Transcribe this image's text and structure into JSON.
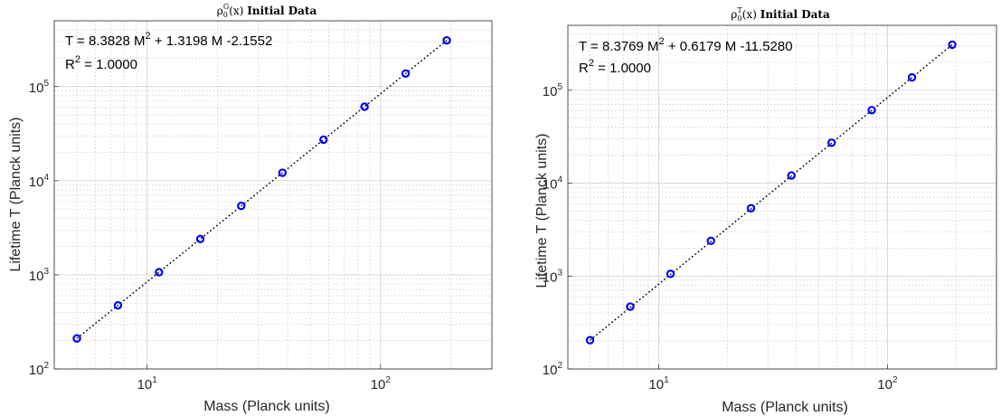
{
  "chart_data": [
    {
      "type": "scatter",
      "title_prefix": "ρ",
      "title_sub": "0",
      "title_sup": "G",
      "title_suffix": "(x)",
      "title_bold": "Initial Data",
      "xlabel": "Mass (Planck units)",
      "ylabel": "Lifetime T (Planck units)",
      "xscale": "log",
      "yscale": "log",
      "xlim": [
        4,
        300
      ],
      "ylim": [
        100,
        500000
      ],
      "xticks": [
        10,
        100
      ],
      "yticks": [
        100,
        1000,
        10000,
        100000
      ],
      "grid": true,
      "marker_color": "#0000ff",
      "fit_line_color": "#000000",
      "series": [
        {
          "type": "scatter",
          "x": [
            5,
            7.5,
            11.25,
            16.9,
            25.3,
            38.0,
            57.0,
            85.4,
            128.1,
            192.2
          ],
          "y": [
            211,
            474,
            1068,
            2403,
            5400,
            12150,
            27300,
            61200,
            137700,
            309700
          ]
        },
        {
          "type": "line",
          "style": "dotted",
          "x": [
            5,
            192.2
          ],
          "y": [
            211,
            309700
          ]
        }
      ],
      "annotations": {
        "eq_prefix": "T = 8.3828 M",
        "eq_sup": "2",
        "eq_suffix": " + 1.3198 M -2.1552",
        "r2_prefix": "R",
        "r2_sup": "2",
        "r2_suffix": " = 1.0000"
      }
    },
    {
      "type": "scatter",
      "title_prefix": "ρ",
      "title_sub": "0",
      "title_sup": "T",
      "title_suffix": "(x)",
      "title_bold": "Initial Data",
      "xlabel": "Mass (Planck units)",
      "ylabel": "Lifetime T (Planck units)",
      "xscale": "log",
      "yscale": "log",
      "xlim": [
        4,
        300
      ],
      "ylim": [
        100,
        500000
      ],
      "xticks": [
        10,
        100
      ],
      "yticks": [
        100,
        1000,
        10000,
        100000
      ],
      "grid": true,
      "marker_color": "#0000ff",
      "fit_line_color": "#000000",
      "series": [
        {
          "type": "scatter",
          "x": [
            5,
            7.5,
            11.25,
            16.9,
            25.3,
            38.0,
            57.0,
            85.4,
            128.1,
            192.2
          ],
          "y": [
            204,
            469,
            1056,
            2394,
            5370,
            12100,
            27250,
            61100,
            137500,
            309500
          ]
        },
        {
          "type": "line",
          "style": "dotted",
          "x": [
            5,
            192.2
          ],
          "y": [
            204,
            309500
          ]
        }
      ],
      "annotations": {
        "eq_prefix": "T = 8.3769 M",
        "eq_sup": "2",
        "eq_suffix": " + 0.6179 M -11.5280",
        "r2_prefix": "R",
        "r2_sup": "2",
        "r2_suffix": " = 1.0000"
      }
    }
  ]
}
